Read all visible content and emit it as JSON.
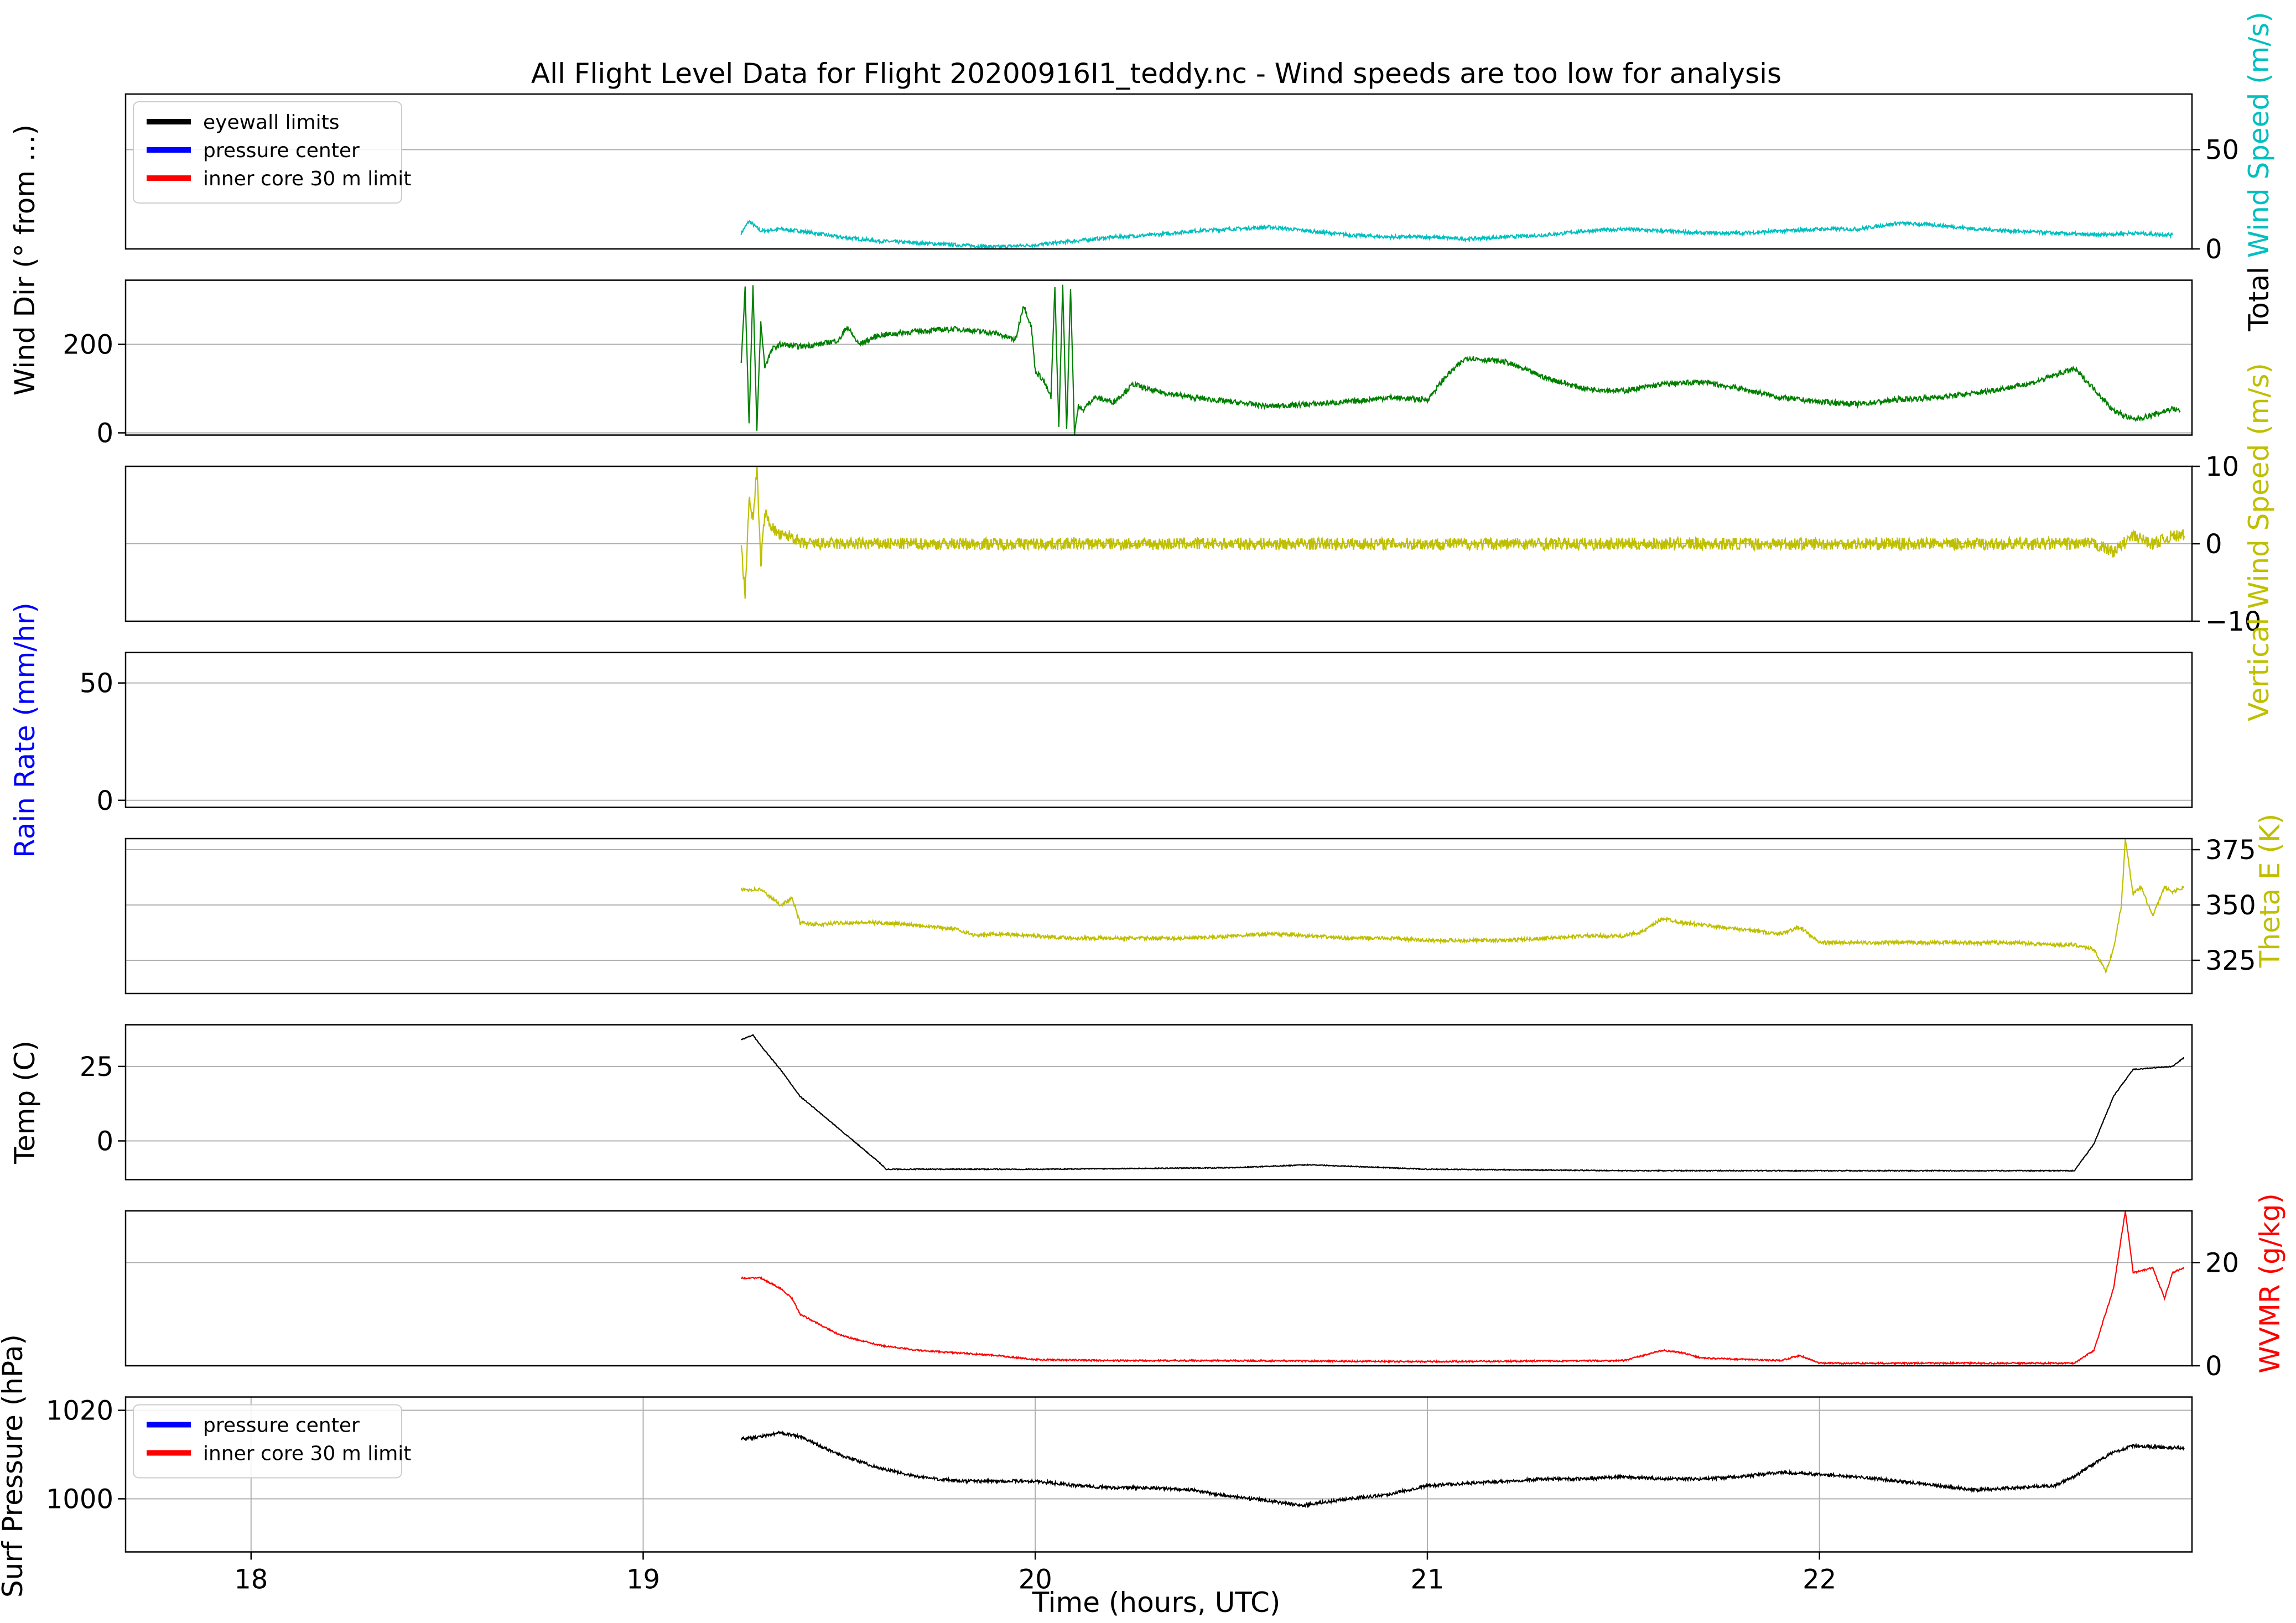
{
  "title": "All Flight Level Data for Flight 20200916I1_teddy.nc - Wind speeds are too low for analysis",
  "xlabel": "Time (hours, UTC)",
  "xlim": [
    17.68,
    22.95
  ],
  "xticks": [
    18,
    19,
    20,
    21,
    22
  ],
  "chart_data": [
    {
      "id": "total-wind",
      "type": "line",
      "ylabel": "Total Wind Speed (m/s)",
      "ylabel_side": "right",
      "ylabel_color": "#00bfbf",
      "ylabel_prefix": "Total ",
      "ylabel_colored": "Wind Speed (m/s)",
      "ylim": [
        0,
        78
      ],
      "yticks": [
        0,
        50
      ],
      "grid": "y",
      "legend": {
        "placement": "top-left",
        "entries": [
          {
            "label": "eyewall limits",
            "color": "#000000"
          },
          {
            "label": "pressure center",
            "color": "#0000ff"
          },
          {
            "label": "inner core 30 m limit",
            "color": "#ff0000"
          }
        ]
      },
      "series": [
        {
          "color": "#00bfbf",
          "noise": 0.9,
          "x": [
            19.25,
            19.27,
            19.3,
            19.35,
            19.4,
            19.5,
            19.6,
            19.7,
            19.8,
            19.9,
            20.0,
            20.1,
            20.2,
            20.3,
            20.4,
            20.5,
            20.6,
            20.7,
            20.8,
            20.9,
            21.0,
            21.1,
            21.2,
            21.3,
            21.4,
            21.5,
            21.6,
            21.7,
            21.8,
            21.9,
            22.0,
            22.1,
            22.2,
            22.3,
            22.4,
            22.5,
            22.6,
            22.7,
            22.8,
            22.9
          ],
          "y": [
            8,
            14,
            9,
            10,
            9,
            6,
            4,
            3,
            2,
            1,
            2,
            4,
            6,
            7,
            9,
            10,
            11,
            9,
            7,
            6,
            6,
            5,
            6,
            7,
            9,
            10,
            9,
            8,
            8,
            9,
            10,
            10,
            13,
            12,
            10,
            9,
            8,
            7,
            8,
            7
          ]
        }
      ]
    },
    {
      "id": "wind-dir",
      "type": "line",
      "ylabel": "Wind Dir (° from ...)",
      "ylabel_side": "left",
      "ylabel_color": "#000000",
      "ylim": [
        -5,
        345
      ],
      "yticks": [
        0,
        200
      ],
      "grid": "y",
      "series": [
        {
          "color": "#008000",
          "noise": 6,
          "x": [
            19.25,
            19.26,
            19.27,
            19.28,
            19.29,
            19.3,
            19.31,
            19.33,
            19.35,
            19.4,
            19.45,
            19.5,
            19.52,
            19.55,
            19.6,
            19.7,
            19.8,
            19.9,
            19.95,
            19.97,
            19.99,
            20.0,
            20.02,
            20.04,
            20.05,
            20.06,
            20.07,
            20.08,
            20.09,
            20.1,
            20.11,
            20.12,
            20.15,
            20.2,
            20.25,
            20.3,
            20.4,
            20.5,
            20.6,
            20.7,
            20.8,
            20.9,
            21.0,
            21.05,
            21.1,
            21.2,
            21.3,
            21.4,
            21.5,
            21.6,
            21.7,
            21.8,
            21.9,
            22.0,
            22.1,
            22.2,
            22.3,
            22.4,
            22.5,
            22.55,
            22.6,
            22.65,
            22.7,
            22.75,
            22.8,
            22.85,
            22.9,
            22.92
          ],
          "y": [
            160,
            330,
            20,
            330,
            10,
            250,
            150,
            190,
            200,
            195,
            200,
            210,
            240,
            200,
            220,
            230,
            235,
            225,
            210,
            290,
            240,
            140,
            120,
            80,
            330,
            10,
            330,
            5,
            330,
            0,
            60,
            50,
            80,
            70,
            110,
            95,
            80,
            70,
            60,
            65,
            70,
            80,
            75,
            130,
            170,
            160,
            125,
            100,
            95,
            110,
            115,
            100,
            80,
            70,
            65,
            75,
            80,
            90,
            105,
            115,
            130,
            145,
            100,
            50,
            30,
            40,
            55,
            50
          ]
        }
      ]
    },
    {
      "id": "vertical-wind",
      "type": "line",
      "ylabel": "Vertical Wind Speed (m/s)",
      "ylabel_side": "right",
      "ylabel_color": "#bfbf00",
      "ylim": [
        -10,
        10
      ],
      "yticks": [
        -10,
        0,
        10
      ],
      "grid": "y",
      "series": [
        {
          "color": "#bfbf00",
          "noise": 0.8,
          "x": [
            19.25,
            19.26,
            19.27,
            19.28,
            19.29,
            19.3,
            19.31,
            19.33,
            19.35,
            19.38,
            19.4,
            19.45,
            19.5,
            20.0,
            20.5,
            21.0,
            21.5,
            22.0,
            22.5,
            22.7,
            22.75,
            22.8,
            22.85,
            22.9,
            22.93
          ],
          "y": [
            0,
            -7,
            6,
            3,
            10,
            -3,
            4,
            2,
            1,
            1,
            0,
            0,
            0,
            0,
            0,
            0,
            0,
            0,
            0,
            0,
            -1,
            1,
            0,
            1,
            1
          ]
        }
      ]
    },
    {
      "id": "rain-rate",
      "type": "line",
      "ylabel": "Rain Rate (mm/hr)",
      "ylabel_side": "left",
      "ylabel_color": "#0000ff",
      "ylim": [
        -3,
        63
      ],
      "yticks": [
        0,
        50
      ],
      "grid": "y",
      "series": []
    },
    {
      "id": "theta-e",
      "type": "line",
      "ylabel": "Theta E (K)",
      "ylabel_side": "right",
      "ylabel_color": "#bfbf00",
      "ylim": [
        310,
        380
      ],
      "yticks": [
        325,
        350,
        375
      ],
      "grid": "y",
      "series": [
        {
          "color": "#bfbf00",
          "noise": 0.8,
          "x": [
            19.25,
            19.3,
            19.35,
            19.38,
            19.4,
            19.45,
            19.5,
            19.6,
            19.7,
            19.8,
            19.85,
            19.9,
            20.0,
            20.1,
            20.2,
            20.3,
            20.4,
            20.5,
            20.6,
            20.7,
            20.8,
            20.9,
            21.0,
            21.1,
            21.2,
            21.3,
            21.4,
            21.5,
            21.55,
            21.6,
            21.65,
            21.7,
            21.8,
            21.9,
            21.95,
            22.0,
            22.1,
            22.2,
            22.3,
            22.4,
            22.5,
            22.6,
            22.65,
            22.7,
            22.73,
            22.75,
            22.77,
            22.78,
            22.8,
            22.82,
            22.85,
            22.88,
            22.9,
            22.93
          ],
          "y": [
            357,
            357,
            350,
            353,
            342,
            341,
            342,
            342,
            341,
            339,
            336,
            337,
            336,
            335,
            335,
            335,
            335,
            336,
            337,
            336,
            335,
            335,
            334,
            334,
            334,
            335,
            336,
            336,
            338,
            344,
            342,
            341,
            339,
            337,
            340,
            333,
            333,
            333,
            333,
            333,
            333,
            332,
            332,
            330,
            320,
            330,
            350,
            380,
            355,
            358,
            345,
            358,
            356,
            358
          ]
        }
      ]
    },
    {
      "id": "temp",
      "type": "line",
      "ylabel": "Temp (C)",
      "ylabel_side": "left",
      "ylabel_color": "#000000",
      "ylim": [
        -13,
        39
      ],
      "yticks": [
        0,
        25
      ],
      "grid": "y",
      "series": [
        {
          "color": "#000000",
          "noise": 0.15,
          "x": [
            19.25,
            19.28,
            19.3,
            19.35,
            19.4,
            19.5,
            19.6,
            19.62,
            19.7,
            20.0,
            20.5,
            20.7,
            21.0,
            21.5,
            22.0,
            22.5,
            22.65,
            22.7,
            22.75,
            22.8,
            22.9,
            22.93
          ],
          "y": [
            34,
            35.5,
            32,
            24,
            15,
            4,
            -7,
            -9.5,
            -9.5,
            -9.5,
            -9,
            -8,
            -9.5,
            -10,
            -10,
            -10,
            -10,
            -1,
            15,
            24,
            25,
            28
          ]
        }
      ]
    },
    {
      "id": "wvmr",
      "type": "line",
      "ylabel": "WVMR (g/kg)",
      "ylabel_side": "right",
      "ylabel_color": "#ff0000",
      "ylim": [
        0,
        30
      ],
      "yticks": [
        0,
        20
      ],
      "grid": "y",
      "series": [
        {
          "color": "#ff0000",
          "noise": 0.15,
          "x": [
            19.25,
            19.3,
            19.35,
            19.38,
            19.4,
            19.5,
            19.6,
            19.7,
            19.8,
            19.9,
            20.0,
            20.2,
            20.5,
            21.0,
            21.5,
            21.6,
            21.65,
            21.7,
            21.9,
            21.95,
            22.0,
            22.5,
            22.65,
            22.7,
            22.75,
            22.78,
            22.8,
            22.85,
            22.88,
            22.9,
            22.93
          ],
          "y": [
            17,
            17,
            15,
            13,
            10,
            6,
            4,
            3,
            2.5,
            2,
            1.2,
            1,
            1,
            0.8,
            1,
            3,
            2.5,
            1.5,
            1,
            2,
            0.5,
            0.5,
            0.5,
            3,
            15,
            30,
            18,
            19,
            13,
            18,
            19
          ]
        }
      ]
    },
    {
      "id": "surf-pressure",
      "type": "line",
      "ylabel": "Surf Pressure (hPa)",
      "ylabel_side": "left",
      "ylabel_color": "#000000",
      "ylim": [
        988,
        1023
      ],
      "yticks": [
        1000,
        1020
      ],
      "grid": "xy",
      "legend": {
        "placement": "top-left",
        "entries": [
          {
            "label": "pressure center",
            "color": "#0000ff"
          },
          {
            "label": "inner core 30 m limit",
            "color": "#ff0000"
          }
        ]
      },
      "series": [
        {
          "color": "#000000",
          "noise": 0.35,
          "x": [
            19.25,
            19.3,
            19.35,
            19.4,
            19.5,
            19.6,
            19.7,
            19.8,
            19.9,
            20.0,
            20.1,
            20.2,
            20.3,
            20.4,
            20.5,
            20.6,
            20.68,
            20.8,
            20.9,
            21.0,
            21.1,
            21.2,
            21.3,
            21.4,
            21.5,
            21.6,
            21.7,
            21.8,
            21.9,
            22.0,
            22.1,
            22.2,
            22.3,
            22.4,
            22.5,
            22.6,
            22.65,
            22.7,
            22.75,
            22.8,
            22.9,
            22.93
          ],
          "y": [
            1013.5,
            1014,
            1015,
            1014,
            1010,
            1007,
            1005,
            1004,
            1004,
            1004,
            1003,
            1002.5,
            1002.5,
            1002,
            1000.5,
            999.5,
            998.5,
            1000,
            1001,
            1003,
            1003.5,
            1004,
            1004.5,
            1004.5,
            1005,
            1004.5,
            1004.5,
            1005,
            1006,
            1005.5,
            1005,
            1004,
            1003,
            1002,
            1002.5,
            1003,
            1005,
            1008,
            1010.5,
            1012,
            1011.5,
            1011.5
          ]
        }
      ]
    }
  ]
}
